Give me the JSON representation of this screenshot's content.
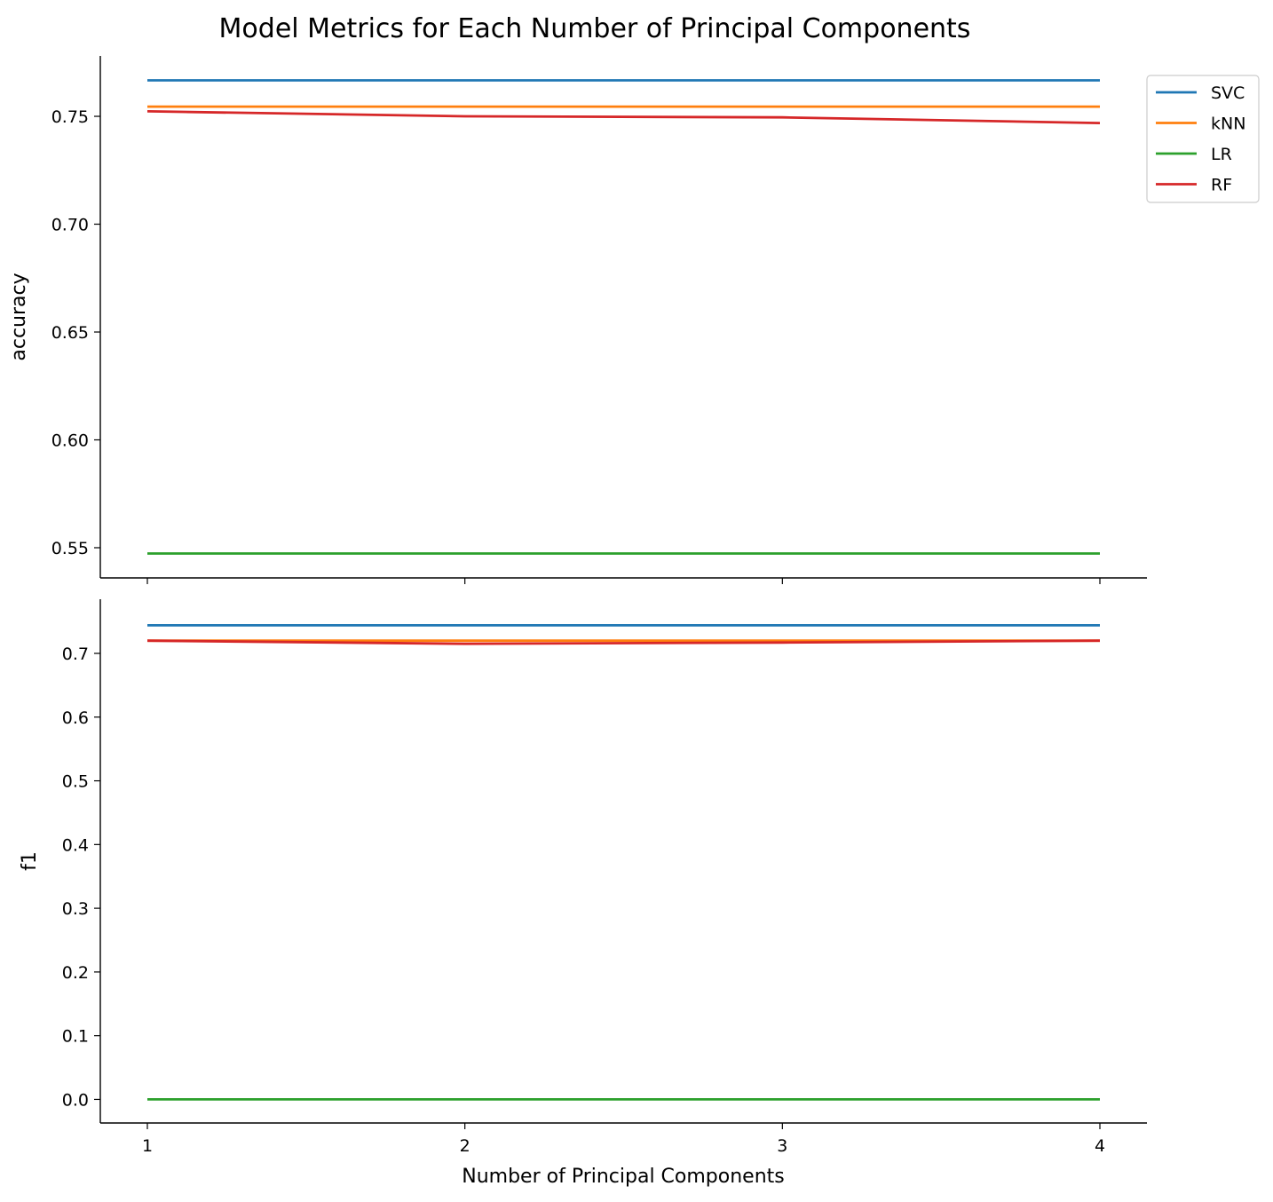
{
  "chart_data": {
    "type": "line",
    "title": "Model Metrics for Each Number of Principal Components",
    "xlabel": "Number of Principal Components",
    "x": [
      1,
      2,
      3,
      4
    ],
    "x_ticks": [
      "1",
      "2",
      "3",
      "4"
    ],
    "legend": {
      "placement": "top-right, outside top panel",
      "entries": [
        "SVC",
        "kNN",
        "LR",
        "RF"
      ]
    },
    "series_colors": {
      "SVC": "#1f77b4",
      "kNN": "#ff7f0e",
      "LR": "#2ca02c",
      "RF": "#d62728"
    },
    "panels": [
      {
        "ylabel": "accuracy",
        "ylim": [
          0.536,
          0.778
        ],
        "y_ticks": [
          0.55,
          0.6,
          0.65,
          0.7,
          0.75
        ],
        "y_tick_labels": [
          "0.55",
          "0.60",
          "0.65",
          "0.70",
          "0.75"
        ],
        "series": [
          {
            "name": "SVC",
            "values": [
              0.7667,
              0.7667,
              0.7667,
              0.7667
            ]
          },
          {
            "name": "kNN",
            "values": [
              0.7545,
              0.7545,
              0.7545,
              0.7545
            ]
          },
          {
            "name": "LR",
            "values": [
              0.5473,
              0.5473,
              0.5473,
              0.5473
            ]
          },
          {
            "name": "RF",
            "values": [
              0.7523,
              0.75,
              0.7495,
              0.7469
            ]
          }
        ]
      },
      {
        "ylabel": "f1",
        "ylim": [
          -0.037,
          0.785
        ],
        "y_ticks": [
          0.0,
          0.1,
          0.2,
          0.3,
          0.4,
          0.5,
          0.6,
          0.7
        ],
        "y_tick_labels": [
          "0.0",
          "0.1",
          "0.2",
          "0.3",
          "0.4",
          "0.5",
          "0.6",
          "0.7"
        ],
        "series": [
          {
            "name": "SVC",
            "values": [
              0.744,
              0.744,
              0.744,
              0.744
            ]
          },
          {
            "name": "kNN",
            "values": [
              0.72,
              0.72,
              0.72,
              0.72
            ]
          },
          {
            "name": "LR",
            "values": [
              0.0,
              0.0,
              0.0,
              0.0
            ]
          },
          {
            "name": "RF",
            "values": [
              0.72,
              0.715,
              0.717,
              0.72
            ]
          }
        ]
      }
    ]
  }
}
